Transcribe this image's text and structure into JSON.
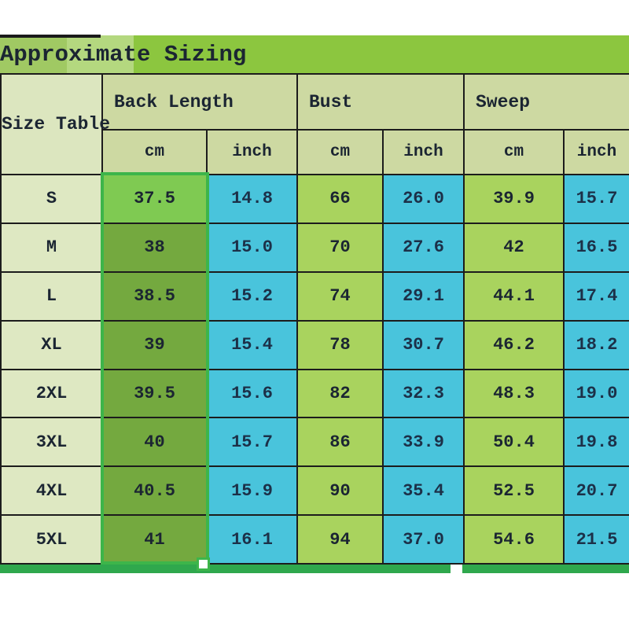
{
  "title": "Approximate Sizing",
  "corner_label": "Size Table",
  "column_groups": [
    {
      "label": "Back Length"
    },
    {
      "label": "Bust"
    },
    {
      "label": "Sweep"
    }
  ],
  "units": [
    "cm",
    "inch",
    "cm",
    "inch",
    "cm",
    "inch"
  ],
  "rows": [
    {
      "size": "S",
      "back_cm": "37.5",
      "back_inch": "14.8",
      "bust_cm": "66",
      "bust_inch": "26.0",
      "sweep_cm": "39.9",
      "sweep_inch": "15.7"
    },
    {
      "size": "M",
      "back_cm": "38",
      "back_inch": "15.0",
      "bust_cm": "70",
      "bust_inch": "27.6",
      "sweep_cm": "42",
      "sweep_inch": "16.5"
    },
    {
      "size": "L",
      "back_cm": "38.5",
      "back_inch": "15.2",
      "bust_cm": "74",
      "bust_inch": "29.1",
      "sweep_cm": "44.1",
      "sweep_inch": "17.4"
    },
    {
      "size": "XL",
      "back_cm": "39",
      "back_inch": "15.4",
      "bust_cm": "78",
      "bust_inch": "30.7",
      "sweep_cm": "46.2",
      "sweep_inch": "18.2"
    },
    {
      "size": "2XL",
      "back_cm": "39.5",
      "back_inch": "15.6",
      "bust_cm": "82",
      "bust_inch": "32.3",
      "sweep_cm": "48.3",
      "sweep_inch": "19.0"
    },
    {
      "size": "3XL",
      "back_cm": "40",
      "back_inch": "15.7",
      "bust_cm": "86",
      "bust_inch": "33.9",
      "sweep_cm": "50.4",
      "sweep_inch": "19.8"
    },
    {
      "size": "4XL",
      "back_cm": "40.5",
      "back_inch": "15.9",
      "bust_cm": "90",
      "bust_inch": "35.4",
      "sweep_cm": "52.5",
      "sweep_inch": "20.7"
    },
    {
      "size": "5XL",
      "back_cm": "41",
      "back_inch": "16.1",
      "bust_cm": "94",
      "bust_inch": "37.0",
      "sweep_cm": "54.6",
      "sweep_inch": "21.5"
    }
  ],
  "colors": {
    "title_bar": "#8cc63f",
    "header_cell": "#cdd9a2",
    "size_column": "#dee8c2",
    "cm_data_cell": "#a9d35e",
    "inch_data_cell": "#49c4dc",
    "highlight_selected_row": "#7fca52",
    "highlight_column": "#74a93f",
    "selection_border": "#3db54a",
    "bottom_strip": "#2fa84d",
    "grid_line": "#1c1c1c"
  }
}
